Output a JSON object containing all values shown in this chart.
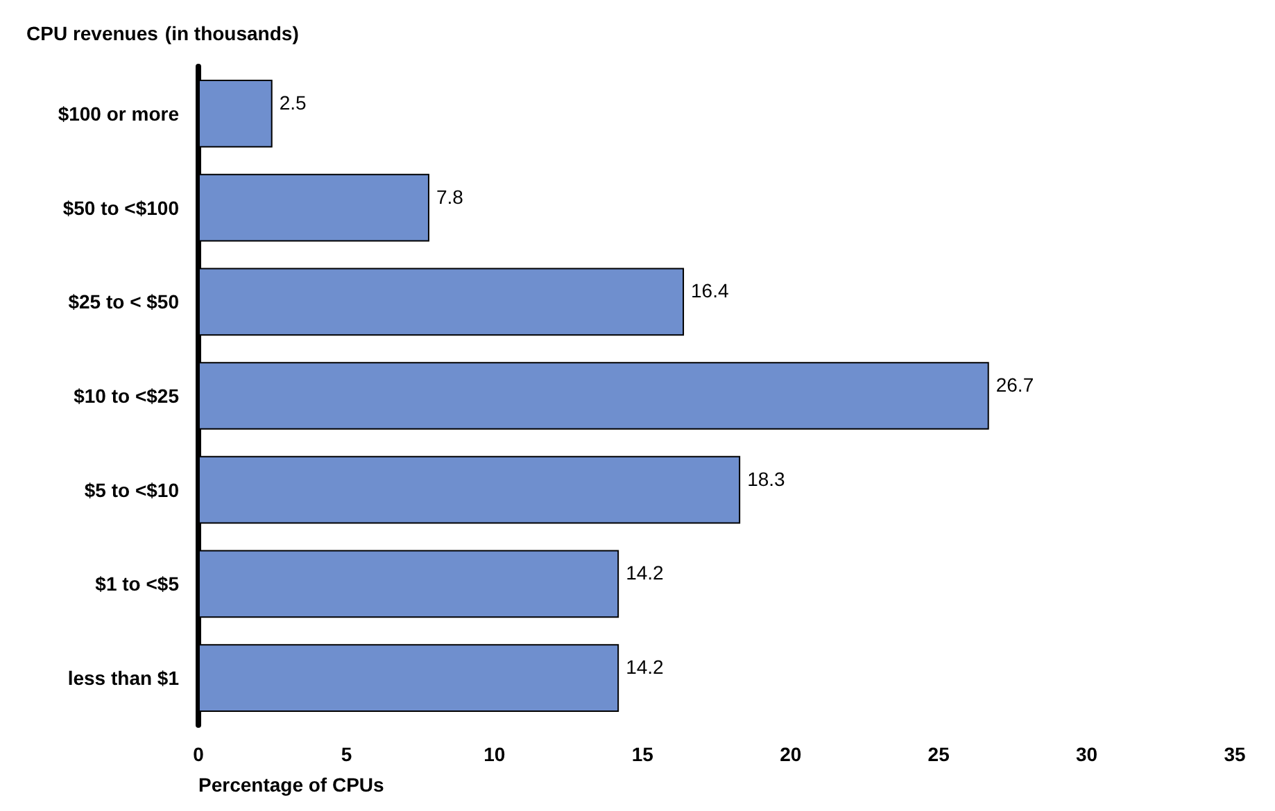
{
  "chart_data": {
    "type": "bar",
    "orientation": "horizontal",
    "title": "CPU revenues",
    "subtitle": "(in thousands)",
    "xlabel": "Percentage of CPUs",
    "categories": [
      "$100 or more",
      "$50 to <$100",
      "$25 to < $50",
      "$10 to <$25",
      "$5 to <$10",
      "$1 to <$5",
      "less than $1"
    ],
    "values": [
      2.5,
      7.8,
      16.4,
      26.7,
      18.3,
      14.2,
      14.2
    ],
    "color": "#6f8fce",
    "xlim": [
      0,
      35
    ],
    "xticks": [
      0,
      5,
      10,
      15,
      20,
      25,
      30,
      35
    ],
    "grid": false,
    "data_labels": true
  }
}
